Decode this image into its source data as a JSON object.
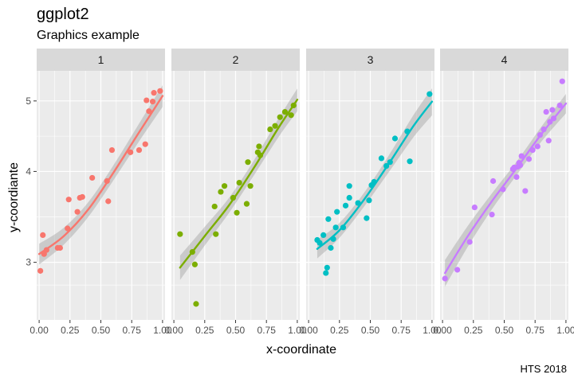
{
  "chart_data": {
    "type": "scatter",
    "title": "ggplot2",
    "subtitle": "Graphics example",
    "caption": "HTS 2018",
    "xlabel": "x-coordinate",
    "ylabel": "y-coordiante",
    "scale_y": "log",
    "xlim": [
      -0.02,
      1.02
    ],
    "ylim": [
      2.5,
      5.5
    ],
    "x_ticks": [
      0,
      0.25,
      0.5,
      0.75,
      1
    ],
    "x_tick_labels": [
      "0.00",
      "0.25",
      "0.50",
      "0.75",
      "1.00"
    ],
    "y_ticks": [
      3,
      4,
      5
    ],
    "y_tick_labels": [
      "3",
      "4",
      "5"
    ],
    "grid": true,
    "legend": "none",
    "smooth": "loess with confidence band",
    "facets": [
      {
        "label": "1",
        "color": "#F8766D",
        "points": [
          [
            0.01,
            2.92
          ],
          [
            0.03,
            3.27
          ],
          [
            0.04,
            3.08
          ],
          [
            0.06,
            3.12
          ],
          [
            0.15,
            3.14
          ],
          [
            0.17,
            3.14
          ],
          [
            0.23,
            3.34
          ],
          [
            0.24,
            3.66
          ],
          [
            0.31,
            3.52
          ],
          [
            0.33,
            3.68
          ],
          [
            0.35,
            3.69
          ],
          [
            0.43,
            3.92
          ],
          [
            0.55,
            3.88
          ],
          [
            0.56,
            3.64
          ],
          [
            0.59,
            4.28
          ],
          [
            0.74,
            4.25
          ],
          [
            0.81,
            4.28
          ],
          [
            0.86,
            4.36
          ],
          [
            0.87,
            5.01
          ],
          [
            0.89,
            4.84
          ],
          [
            0.93,
            5.13
          ],
          [
            0.98,
            5.16
          ],
          [
            0.92,
            4.99
          ]
        ],
        "fit": [
          [
            0.0,
            3.08
          ],
          [
            0.2,
            3.26
          ],
          [
            0.4,
            3.55
          ],
          [
            0.6,
            3.98
          ],
          [
            0.8,
            4.5
          ],
          [
            1.0,
            5.08
          ]
        ]
      },
      {
        "label": "2",
        "color": "#7CAE00",
        "points": [
          [
            0.05,
            3.28
          ],
          [
            0.15,
            3.1
          ],
          [
            0.17,
            2.98
          ],
          [
            0.18,
            2.63
          ],
          [
            0.33,
            3.58
          ],
          [
            0.34,
            3.28
          ],
          [
            0.38,
            3.75
          ],
          [
            0.41,
            3.82
          ],
          [
            0.48,
            3.68
          ],
          [
            0.51,
            3.51
          ],
          [
            0.53,
            3.86
          ],
          [
            0.59,
            3.61
          ],
          [
            0.6,
            4.12
          ],
          [
            0.68,
            4.25
          ],
          [
            0.69,
            4.33
          ],
          [
            0.78,
            4.57
          ],
          [
            0.82,
            4.62
          ],
          [
            0.86,
            4.75
          ],
          [
            0.9,
            4.83
          ],
          [
            0.95,
            4.78
          ],
          [
            0.97,
            4.93
          ],
          [
            0.62,
            3.82
          ],
          [
            0.7,
            4.21
          ]
        ],
        "fit": [
          [
            0.05,
            2.95
          ],
          [
            0.25,
            3.26
          ],
          [
            0.45,
            3.6
          ],
          [
            0.65,
            4.05
          ],
          [
            0.85,
            4.6
          ],
          [
            1.0,
            5.02
          ]
        ]
      },
      {
        "label": "3",
        "color": "#00BFC4",
        "points": [
          [
            0.07,
            3.22
          ],
          [
            0.09,
            3.19
          ],
          [
            0.12,
            3.27
          ],
          [
            0.14,
            2.9
          ],
          [
            0.15,
            2.95
          ],
          [
            0.16,
            3.44
          ],
          [
            0.18,
            3.14
          ],
          [
            0.2,
            3.23
          ],
          [
            0.22,
            3.35
          ],
          [
            0.23,
            3.52
          ],
          [
            0.28,
            3.35
          ],
          [
            0.3,
            3.59
          ],
          [
            0.33,
            3.68
          ],
          [
            0.33,
            3.82
          ],
          [
            0.4,
            3.62
          ],
          [
            0.47,
            3.45
          ],
          [
            0.49,
            3.65
          ],
          [
            0.51,
            3.83
          ],
          [
            0.53,
            3.87
          ],
          [
            0.59,
            4.17
          ],
          [
            0.63,
            4.07
          ],
          [
            0.66,
            4.12
          ],
          [
            0.7,
            4.44
          ],
          [
            0.8,
            4.54
          ],
          [
            0.82,
            4.13
          ],
          [
            0.98,
            5.11
          ]
        ],
        "fit": [
          [
            0.07,
            3.13
          ],
          [
            0.25,
            3.32
          ],
          [
            0.45,
            3.66
          ],
          [
            0.65,
            4.1
          ],
          [
            0.85,
            4.62
          ],
          [
            1.0,
            4.99
          ]
        ]
      },
      {
        "label": "4",
        "color": "#C77CFF",
        "points": [
          [
            0.02,
            2.85
          ],
          [
            0.12,
            2.93
          ],
          [
            0.22,
            3.2
          ],
          [
            0.26,
            3.57
          ],
          [
            0.4,
            3.49
          ],
          [
            0.41,
            3.88
          ],
          [
            0.49,
            3.78
          ],
          [
            0.57,
            4.03
          ],
          [
            0.58,
            4.05
          ],
          [
            0.6,
            3.93
          ],
          [
            0.61,
            4.06
          ],
          [
            0.62,
            4.11
          ],
          [
            0.63,
            4.08
          ],
          [
            0.64,
            4.2
          ],
          [
            0.67,
            3.76
          ],
          [
            0.7,
            4.16
          ],
          [
            0.73,
            4.28
          ],
          [
            0.77,
            4.33
          ],
          [
            0.79,
            4.49
          ],
          [
            0.82,
            4.57
          ],
          [
            0.84,
            4.83
          ],
          [
            0.86,
            4.41
          ],
          [
            0.87,
            4.68
          ],
          [
            0.89,
            4.86
          ],
          [
            0.9,
            4.73
          ],
          [
            0.95,
            4.93
          ],
          [
            0.97,
            5.32
          ]
        ],
        "fit": [
          [
            0.02,
            2.9
          ],
          [
            0.2,
            3.25
          ],
          [
            0.4,
            3.64
          ],
          [
            0.6,
            4.04
          ],
          [
            0.8,
            4.5
          ],
          [
            1.0,
            4.96
          ]
        ]
      }
    ]
  }
}
